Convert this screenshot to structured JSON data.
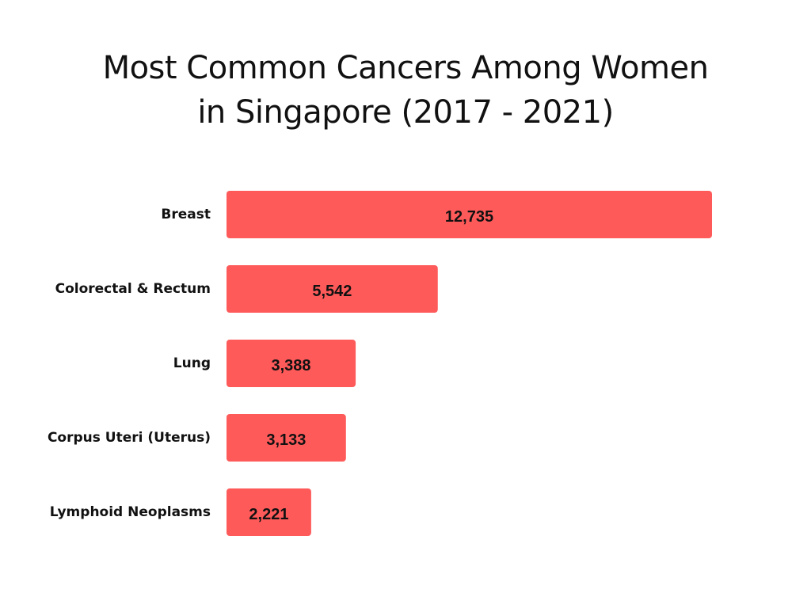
{
  "title_lines": [
    "Most Common Cancers Among Women",
    "in Singapore (2017 - 2021)"
  ],
  "chart_data": {
    "type": "bar",
    "orientation": "horizontal",
    "title": "Most Common Cancers Among Women in Singapore (2017 - 2021)",
    "categories": [
      "Breast",
      "Colorectal & Rectum",
      "Lung",
      "Corpus Uteri (Uterus)",
      "Lymphoid Neoplasms"
    ],
    "values": [
      12735,
      5542,
      3388,
      3133,
      2221
    ],
    "value_labels": [
      "12,735",
      "5,542",
      "3,388",
      "3,133",
      "2,221"
    ],
    "xlim": [
      0,
      12735
    ],
    "grid": false,
    "legend": "none",
    "bar_color": "#FF5A5A"
  }
}
